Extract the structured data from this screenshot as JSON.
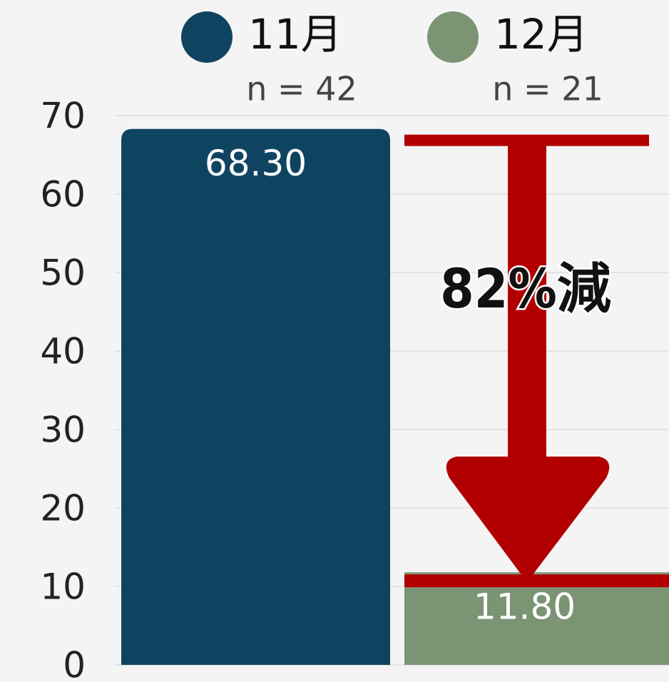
{
  "chart_data": {
    "type": "bar",
    "categories": [
      null
    ],
    "series": [
      {
        "name": "11月",
        "sample_label": "n = 42",
        "color": "#0f4460",
        "values": [
          68.3
        ],
        "value_labels": [
          "68.30"
        ]
      },
      {
        "name": "12月",
        "sample_label": "n = 21",
        "color": "#7b9474",
        "values": [
          11.8
        ],
        "value_labels": [
          "11.80"
        ]
      }
    ],
    "annotation": "82%減",
    "arrow_color": "#b20000",
    "ylim": [
      0,
      70
    ],
    "yticks": [
      0,
      10,
      20,
      30,
      40,
      50,
      60,
      70
    ],
    "grid": true
  }
}
